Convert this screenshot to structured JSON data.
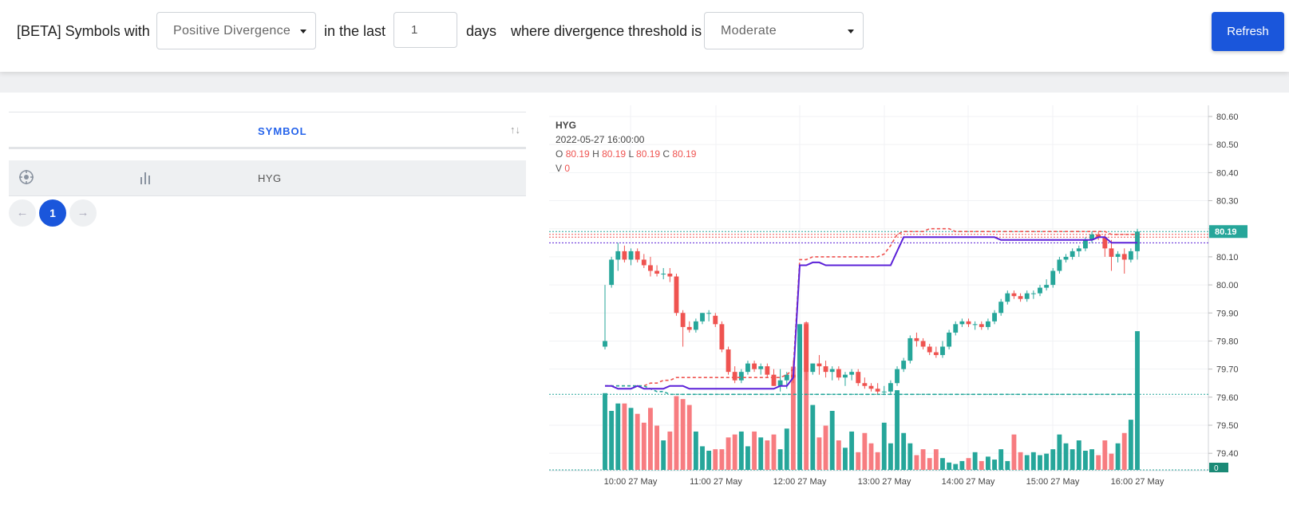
{
  "filter": {
    "prefix": "[BETA] Symbols with",
    "divergence_type": "Positive Divergence",
    "in_the_last": "in the last",
    "days_value": "1",
    "days": "days",
    "threshold_label": "where divergence threshold is",
    "threshold_value": "Moderate",
    "refresh_label": "Refresh"
  },
  "table": {
    "column_symbol": "SYMBOL",
    "sort_glyph": "↑↓",
    "rows": [
      {
        "symbol": "HYG"
      }
    ],
    "pagination": {
      "prev": "←",
      "current": "1",
      "next": "→"
    }
  },
  "legend": {
    "symbol": "HYG",
    "datetime": "2022-05-27 16:00:00",
    "o_label": "O",
    "o": "80.19",
    "h_label": "H",
    "h": "80.19",
    "l_label": "L",
    "l": "80.19",
    "c_label": "C",
    "c": "80.19",
    "v_label": "V",
    "v": "0"
  },
  "colors": {
    "accent": "#1a56db",
    "up": "#26a69a",
    "down": "#ef5350",
    "vwap": "#5b21d8",
    "threshold_red": "#ef5350",
    "threshold_green": "#26a69a"
  },
  "chart_data": {
    "type": "candlestick",
    "price_axis": {
      "ticks": [
        "80.60",
        "80.50",
        "80.40",
        "80.30",
        "80.20",
        "80.10",
        "80.00",
        "79.90",
        "79.80",
        "79.70",
        "79.60",
        "79.50",
        "79.40"
      ],
      "ylim": [
        79.33,
        80.64
      ]
    },
    "time_axis": {
      "ticks": [
        "10:00 27 May",
        "11:00 27 May",
        "12:00 27 May",
        "13:00 27 May",
        "14:00 27 May",
        "15:00 27 May",
        "16:00 27 May"
      ]
    },
    "last_price_label": "80.19",
    "last_volume_label": "0",
    "candles": [
      [
        79.78,
        80.0,
        79.77,
        79.8
      ],
      [
        80.0,
        80.1,
        79.99,
        80.09
      ],
      [
        80.09,
        80.15,
        80.05,
        80.12
      ],
      [
        80.12,
        80.14,
        80.08,
        80.09
      ],
      [
        80.09,
        80.13,
        80.07,
        80.12
      ],
      [
        80.12,
        80.13,
        80.08,
        80.09
      ],
      [
        80.09,
        80.11,
        80.06,
        80.07
      ],
      [
        80.07,
        80.1,
        80.03,
        80.05
      ],
      [
        80.05,
        80.07,
        80.03,
        80.04
      ],
      [
        80.04,
        80.06,
        80.02,
        80.04
      ],
      [
        80.04,
        80.06,
        80.01,
        80.03
      ],
      [
        80.03,
        80.04,
        79.89,
        79.9
      ],
      [
        79.9,
        79.91,
        79.78,
        79.85
      ],
      [
        79.85,
        79.87,
        79.83,
        79.84
      ],
      [
        79.84,
        79.88,
        79.83,
        79.87
      ],
      [
        79.87,
        79.9,
        79.86,
        79.9
      ],
      [
        79.9,
        79.91,
        79.87,
        79.9
      ],
      [
        79.89,
        79.9,
        79.85,
        79.86
      ],
      [
        79.86,
        79.87,
        79.76,
        79.77
      ],
      [
        79.77,
        79.78,
        79.68,
        79.69
      ],
      [
        79.69,
        79.71,
        79.65,
        79.66
      ],
      [
        79.66,
        79.7,
        79.65,
        79.69
      ],
      [
        79.69,
        79.73,
        79.68,
        79.72
      ],
      [
        79.72,
        79.73,
        79.69,
        79.7
      ],
      [
        79.7,
        79.72,
        79.68,
        79.71
      ],
      [
        79.71,
        79.72,
        79.67,
        79.68
      ],
      [
        79.68,
        79.7,
        79.64,
        79.64
      ],
      [
        79.64,
        79.7,
        79.62,
        79.66
      ],
      [
        79.66,
        79.69,
        79.63,
        79.68
      ],
      [
        79.68,
        79.73,
        79.65,
        79.67
      ],
      [
        79.67,
        79.86,
        79.65,
        79.86
      ],
      [
        79.86,
        79.87,
        79.66,
        79.69
      ],
      [
        79.69,
        79.72,
        79.68,
        79.72
      ],
      [
        79.72,
        79.75,
        79.68,
        79.71
      ],
      [
        79.71,
        79.73,
        79.67,
        79.69
      ],
      [
        79.69,
        79.71,
        79.66,
        79.7
      ],
      [
        79.7,
        79.71,
        79.66,
        79.67
      ],
      [
        79.67,
        79.69,
        79.64,
        79.68
      ],
      [
        79.68,
        79.7,
        79.66,
        79.69
      ],
      [
        79.69,
        79.7,
        79.64,
        79.65
      ],
      [
        79.65,
        79.67,
        79.63,
        79.64
      ],
      [
        79.64,
        79.65,
        79.62,
        79.63
      ],
      [
        79.63,
        79.65,
        79.61,
        79.62
      ],
      [
        79.62,
        79.64,
        79.61,
        79.62
      ],
      [
        79.62,
        79.66,
        79.61,
        79.65
      ],
      [
        79.65,
        79.71,
        79.64,
        79.7
      ],
      [
        79.7,
        79.74,
        79.69,
        79.73
      ],
      [
        79.73,
        79.82,
        79.72,
        79.81
      ],
      [
        79.81,
        79.83,
        79.78,
        79.8
      ],
      [
        79.8,
        79.81,
        79.77,
        79.78
      ],
      [
        79.78,
        79.79,
        79.75,
        79.76
      ],
      [
        79.76,
        79.78,
        79.74,
        79.75
      ],
      [
        79.75,
        79.8,
        79.74,
        79.78
      ],
      [
        79.78,
        79.84,
        79.77,
        79.83
      ],
      [
        79.83,
        79.87,
        79.82,
        79.86
      ],
      [
        79.86,
        79.88,
        79.85,
        79.87
      ],
      [
        79.87,
        79.88,
        79.85,
        79.86
      ],
      [
        79.86,
        79.87,
        79.84,
        79.86
      ],
      [
        79.86,
        79.87,
        79.84,
        79.85
      ],
      [
        79.85,
        79.88,
        79.84,
        79.87
      ],
      [
        79.87,
        79.91,
        79.86,
        79.9
      ],
      [
        79.9,
        79.95,
        79.89,
        79.94
      ],
      [
        79.94,
        79.98,
        79.93,
        79.97
      ],
      [
        79.97,
        79.98,
        79.95,
        79.96
      ],
      [
        79.96,
        79.97,
        79.94,
        79.95
      ],
      [
        79.95,
        79.98,
        79.94,
        79.97
      ],
      [
        79.97,
        79.98,
        79.95,
        79.97
      ],
      [
        79.97,
        80.0,
        79.96,
        79.99
      ],
      [
        79.99,
        80.02,
        79.98,
        80.0
      ],
      [
        80.0,
        80.06,
        79.99,
        80.05
      ],
      [
        80.05,
        80.1,
        80.04,
        80.09
      ],
      [
        80.09,
        80.11,
        80.08,
        80.1
      ],
      [
        80.1,
        80.13,
        80.09,
        80.12
      ],
      [
        80.12,
        80.14,
        80.1,
        80.13
      ],
      [
        80.13,
        80.17,
        80.12,
        80.16
      ],
      [
        80.16,
        80.19,
        80.15,
        80.18
      ],
      [
        80.18,
        80.19,
        80.16,
        80.17
      ],
      [
        80.17,
        80.18,
        80.1,
        80.13
      ],
      [
        80.13,
        80.16,
        80.05,
        80.1
      ],
      [
        80.1,
        80.12,
        80.08,
        80.11
      ],
      [
        80.11,
        80.13,
        80.04,
        80.09
      ],
      [
        80.09,
        80.13,
        80.08,
        80.12
      ],
      [
        80.12,
        80.2,
        80.09,
        80.19
      ]
    ],
    "volumes": [
      0.52,
      0.4,
      0.45,
      0.45,
      0.42,
      0.38,
      0.32,
      0.42,
      0.3,
      0.2,
      0.26,
      0.5,
      0.48,
      0.44,
      0.26,
      0.16,
      0.13,
      0.14,
      0.14,
      0.22,
      0.24,
      0.26,
      0.16,
      0.26,
      0.22,
      0.2,
      0.24,
      0.14,
      0.28,
      0.7,
      0.9,
      1.0,
      0.44,
      0.22,
      0.3,
      0.4,
      0.2,
      0.15,
      0.26,
      0.12,
      0.25,
      0.18,
      0.12,
      0.32,
      0.18,
      0.54,
      0.25,
      0.18,
      0.1,
      0.14,
      0.08,
      0.14,
      0.08,
      0.05,
      0.04,
      0.06,
      0.08,
      0.12,
      0.06,
      0.09,
      0.07,
      0.14,
      0.06,
      0.24,
      0.12,
      0.1,
      0.12,
      0.1,
      0.11,
      0.14,
      0.24,
      0.18,
      0.14,
      0.2,
      0.13,
      0.14,
      0.1,
      0.2,
      0.11,
      0.18,
      0.25,
      0.34,
      0.94
    ],
    "vwap": [
      79.64,
      79.64,
      79.63,
      79.63,
      79.63,
      79.64,
      79.63,
      79.63,
      79.63,
      79.63,
      79.64,
      79.64,
      79.64,
      79.63,
      79.63,
      79.63,
      79.63,
      79.63,
      79.63,
      79.63,
      79.63,
      79.63,
      79.63,
      79.63,
      79.63,
      79.63,
      79.63,
      79.64,
      79.64,
      79.67,
      80.07,
      80.07,
      80.08,
      80.08,
      80.07,
      80.07,
      80.07,
      80.07,
      80.07,
      80.07,
      80.07,
      80.07,
      80.07,
      80.07,
      80.07,
      80.12,
      80.17,
      80.17,
      80.17,
      80.17,
      80.17,
      80.17,
      80.17,
      80.17,
      80.17,
      80.17,
      80.17,
      80.17,
      80.17,
      80.17,
      80.17,
      80.16,
      80.16,
      80.16,
      80.16,
      80.16,
      80.16,
      80.16,
      80.16,
      80.16,
      80.16,
      80.16,
      80.16,
      80.16,
      80.16,
      80.16,
      80.17,
      80.17,
      80.15,
      80.15,
      80.15,
      80.15,
      80.15
    ],
    "upper_threshold": [
      79.64,
      79.64,
      79.64,
      79.64,
      79.64,
      79.64,
      79.64,
      79.65,
      79.65,
      79.66,
      79.66,
      79.67,
      79.67,
      79.67,
      79.67,
      79.67,
      79.67,
      79.67,
      79.67,
      79.67,
      79.67,
      79.67,
      79.67,
      79.67,
      79.67,
      79.67,
      79.67,
      79.67,
      79.68,
      79.7,
      80.09,
      80.09,
      80.1,
      80.1,
      80.1,
      80.1,
      80.1,
      80.1,
      80.1,
      80.1,
      80.1,
      80.1,
      80.1,
      80.11,
      80.14,
      80.18,
      80.19,
      80.19,
      80.19,
      80.19,
      80.2,
      80.2,
      80.2,
      80.2,
      80.19,
      80.19,
      80.19,
      80.19,
      80.19,
      80.19,
      80.19,
      80.19,
      80.19,
      80.19,
      80.19,
      80.19,
      80.19,
      80.19,
      80.19,
      80.19,
      80.19,
      80.19,
      80.19,
      80.19,
      80.19,
      80.19,
      80.19,
      80.19,
      80.18,
      80.18,
      80.18,
      80.18,
      80.18
    ],
    "lower_threshold": [
      79.64,
      79.64,
      79.64,
      79.64,
      79.64,
      79.64,
      79.64,
      79.63,
      79.62,
      79.62,
      79.61,
      79.61,
      79.61,
      79.61,
      79.61,
      79.61,
      79.61,
      79.61,
      79.61,
      79.61,
      79.61,
      79.61,
      79.61,
      79.61,
      79.61,
      79.61,
      79.61,
      79.61,
      79.61,
      79.61,
      79.61,
      79.61,
      79.61,
      79.61,
      79.61,
      79.61,
      79.61,
      79.61,
      79.61,
      79.61,
      79.61,
      79.61,
      79.61,
      79.61,
      79.61,
      79.61,
      79.61,
      79.61,
      79.61,
      79.61,
      79.61,
      79.61,
      79.61,
      79.61,
      79.61,
      79.61,
      79.61,
      79.61,
      79.61,
      79.61,
      79.61,
      79.61,
      79.61,
      79.61,
      79.61,
      79.61,
      79.61,
      79.61,
      79.61,
      79.61,
      79.61,
      79.61,
      79.61,
      79.61,
      79.61,
      79.61,
      79.61,
      79.61,
      79.61,
      79.61,
      79.61,
      79.61,
      79.61
    ],
    "horizontal_levels": [
      {
        "value": 80.19,
        "style": "green-dotted"
      },
      {
        "value": 80.18,
        "style": "red-dotted"
      },
      {
        "value": 80.17,
        "style": "red-dotted"
      },
      {
        "value": 80.15,
        "style": "purple-dotted"
      },
      {
        "value": 79.61,
        "style": "green-dotted"
      }
    ]
  }
}
